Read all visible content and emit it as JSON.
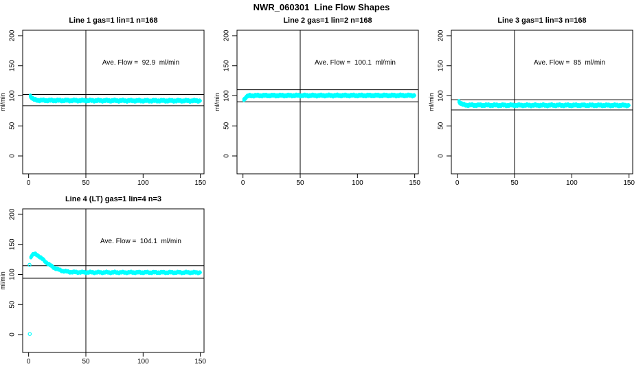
{
  "title": "NWR_060301  Line Flow Shapes",
  "colors": {
    "points": "#00ffff",
    "axis": "#000000",
    "background": "#ffffff"
  },
  "axes": {
    "ylabel": "ml/min",
    "x_ticks": [
      0,
      50,
      100,
      150
    ],
    "y_ticks": [
      0,
      50,
      100,
      150,
      200
    ],
    "xlim": [
      -5.2,
      153.2
    ],
    "ylim": [
      -29.7,
      209.1
    ],
    "vline_x": 50
  },
  "chart_data": [
    {
      "type": "scatter",
      "title": "Line 1 gas=1 lin=1 n=168",
      "annotation": "Ave. Flow =  92.9  ml/min",
      "ave_flow_ml_min": 92.9,
      "n": 168,
      "hlines": [
        102.2,
        83.6
      ],
      "points": [
        [
          1.5,
          100.3
        ],
        [
          2,
          98.8
        ],
        [
          3,
          96.3
        ],
        [
          4,
          94.6
        ],
        [
          5,
          93.6
        ],
        [
          6,
          93.1
        ],
        [
          8,
          92.7
        ],
        [
          10,
          92.5
        ],
        [
          20,
          92.3
        ],
        [
          40,
          92.2
        ],
        [
          60,
          92.1
        ],
        [
          80,
          92.0
        ],
        [
          100,
          91.9
        ],
        [
          120,
          91.9
        ],
        [
          150,
          91.8
        ]
      ],
      "outliers": []
    },
    {
      "type": "scatter",
      "title": "Line 2 gas=1 lin=2 n=168",
      "annotation": "Ave. Flow =  100.1  ml/min",
      "ave_flow_ml_min": 100.1,
      "n": 168,
      "hlines": [
        110.1,
        90.1
      ],
      "points": [
        [
          0.8,
          93.7
        ],
        [
          2,
          96.5
        ],
        [
          3,
          98.3
        ],
        [
          4,
          99.3
        ],
        [
          5,
          99.8
        ],
        [
          6,
          100.1
        ],
        [
          8,
          100.3
        ],
        [
          10,
          100.4
        ],
        [
          30,
          100.5
        ],
        [
          60,
          100.5
        ],
        [
          100,
          100.6
        ],
        [
          150,
          100.6
        ]
      ],
      "outliers": []
    },
    {
      "type": "scatter",
      "title": "Line 3 gas=1 lin=3 n=168",
      "annotation": "Ave. Flow =  85  ml/min",
      "ave_flow_ml_min": 85,
      "n": 168,
      "hlines": [
        93.5,
        76.5
      ],
      "points": [
        [
          1.5,
          91.0
        ],
        [
          2,
          89.5
        ],
        [
          3,
          87.6
        ],
        [
          4,
          86.3
        ],
        [
          5,
          85.5
        ],
        [
          6,
          85.0
        ],
        [
          8,
          84.7
        ],
        [
          10,
          84.5
        ],
        [
          30,
          84.4
        ],
        [
          60,
          84.3
        ],
        [
          100,
          84.3
        ],
        [
          150,
          84.2
        ]
      ],
      "outliers": []
    },
    {
      "type": "scatter",
      "title": "Line 4 (LT) gas=1 lin=4 n=3",
      "annotation": "Ave. Flow =  104.1  ml/min",
      "ave_flow_ml_min": 104.1,
      "n": 3,
      "hlines": [
        114.5,
        93.7
      ],
      "points": [
        [
          2,
          129.5
        ],
        [
          3,
          132.0
        ],
        [
          4,
          133.3
        ],
        [
          5,
          133.8
        ],
        [
          6,
          133.5
        ],
        [
          7,
          132.8
        ],
        [
          8,
          131.7
        ],
        [
          9,
          130.4
        ],
        [
          10,
          128.9
        ],
        [
          12,
          125.6
        ],
        [
          14,
          122.3
        ],
        [
          16,
          119.2
        ],
        [
          18,
          116.3
        ],
        [
          20,
          113.8
        ],
        [
          22,
          111.6
        ],
        [
          24,
          109.7
        ],
        [
          26,
          108.1
        ],
        [
          28,
          106.8
        ],
        [
          30,
          105.8
        ],
        [
          33,
          104.8
        ],
        [
          36,
          104.2
        ],
        [
          40,
          103.8
        ],
        [
          50,
          103.5
        ],
        [
          70,
          103.4
        ],
        [
          100,
          103.4
        ],
        [
          150,
          103.3
        ]
      ],
      "outliers": [
        [
          0.8,
          116
        ],
        [
          1,
          1
        ]
      ]
    }
  ]
}
